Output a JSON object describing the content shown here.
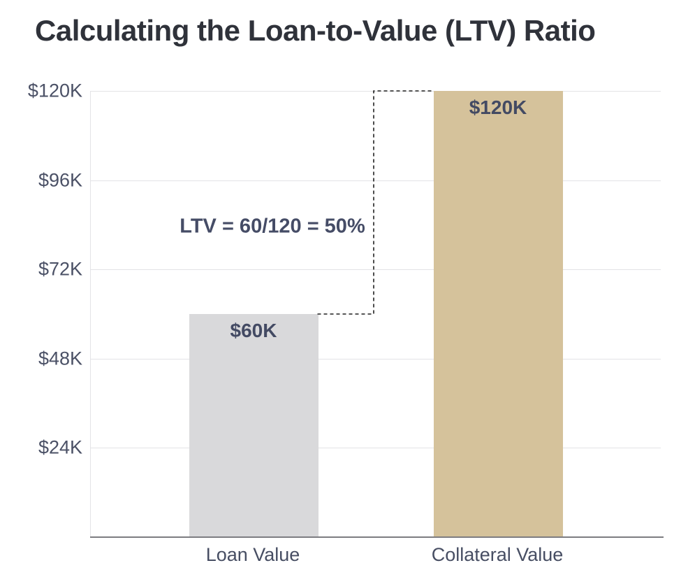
{
  "title": "Calculating the Loan-to-Value (LTV) Ratio",
  "annotation": {
    "text": "LTV = 60/120 = 50%"
  },
  "chart_data": {
    "type": "bar",
    "title": "Calculating the Loan-to-Value (LTV) Ratio",
    "categories": [
      "Loan Value",
      "Collateral Value"
    ],
    "values": [
      60000,
      120000
    ],
    "bar_value_labels": [
      "$60K",
      "$120K"
    ],
    "bar_colors": [
      "#d9d9db",
      "#d5c29b"
    ],
    "xlabel": "",
    "ylabel": "",
    "ylim": [
      0,
      120000
    ],
    "y_ticks": [
      {
        "value": 24000,
        "label": "$24K"
      },
      {
        "value": 48000,
        "label": "$48K"
      },
      {
        "value": 72000,
        "label": "$72K"
      },
      {
        "value": 96000,
        "label": "$96K"
      },
      {
        "value": 120000,
        "label": "$120K"
      }
    ],
    "grid": true,
    "legend": false,
    "annotations": [
      "LTV = 60/120 = 50%"
    ]
  },
  "colors": {
    "title_text": "#2f323a",
    "tick_text": "#4b5166",
    "bar_label_text": "#434a63",
    "category_text": "#474e63",
    "annotation_text": "#454c66",
    "gridline": "#e3e3e6",
    "axis_line": "#7d7d81",
    "dashed_connector": "#1f1f1f",
    "loan_bar": "#d9d9db",
    "collateral_bar": "#d5c29b",
    "background": "#ffffff"
  }
}
